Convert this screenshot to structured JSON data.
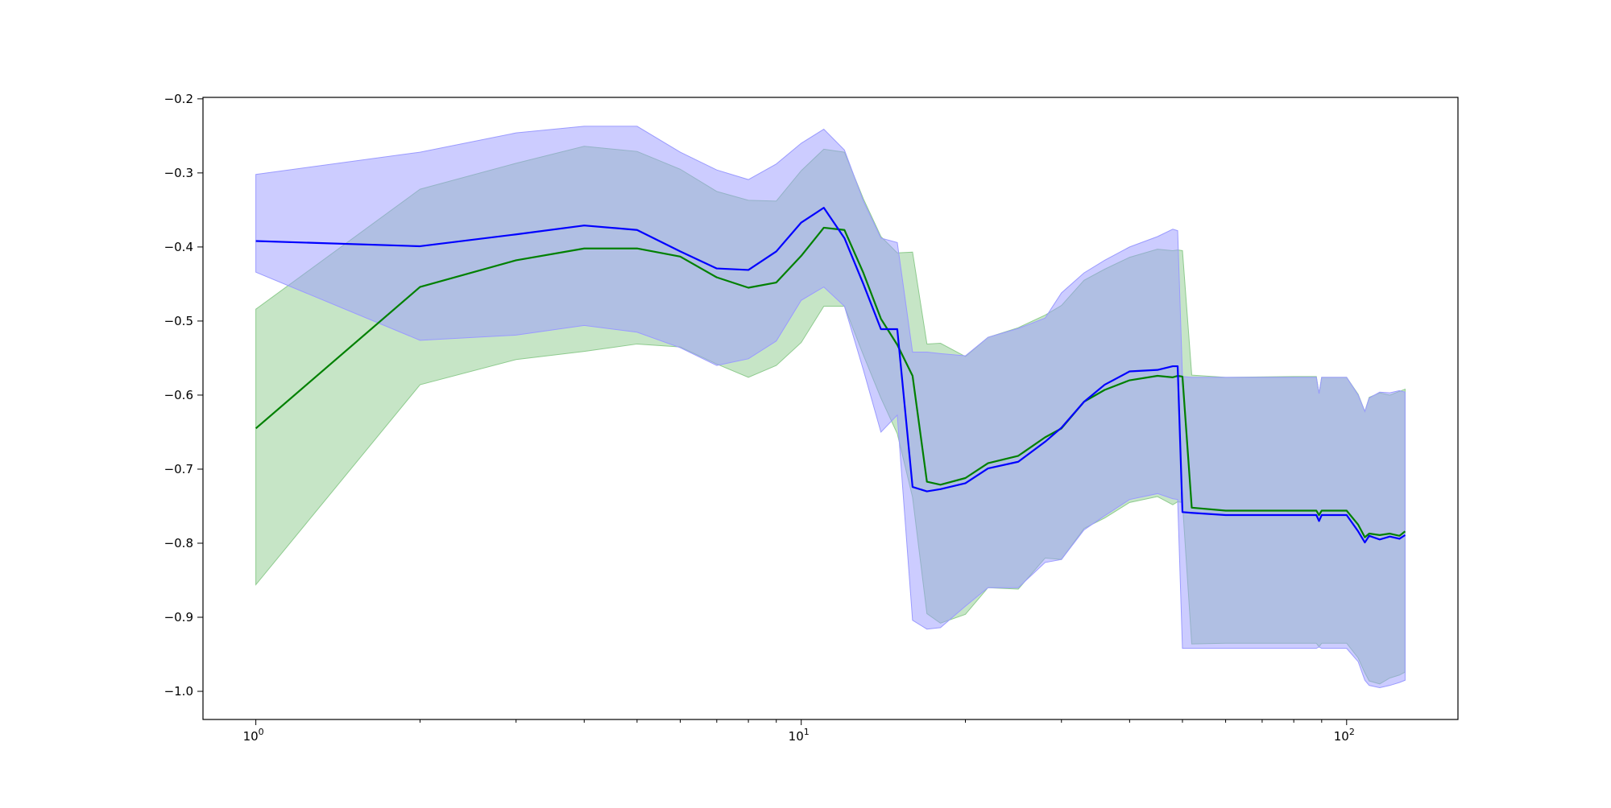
{
  "chart_data": {
    "type": "line",
    "xscale": "log",
    "xlim": [
      0.8,
      160
    ],
    "ylim": [
      -1.038,
      -0.198
    ],
    "grid": false,
    "x_ticks": [
      {
        "value": 1,
        "base": "10",
        "exp": "0"
      },
      {
        "value": 10,
        "base": "10",
        "exp": "1"
      },
      {
        "value": 100,
        "base": "10",
        "exp": "2"
      }
    ],
    "y_ticks": [
      -0.2,
      -0.3,
      -0.4,
      -0.5,
      -0.6,
      -0.7,
      -0.8,
      -0.9,
      -1.0
    ],
    "y_tick_labels": [
      "−0.2",
      "−0.3",
      "−0.4",
      "−0.5",
      "−0.6",
      "−0.7",
      "−0.8",
      "−0.9",
      "−1.0"
    ],
    "series": [
      {
        "color": "#008000",
        "band_color": "#8ecb8e",
        "x": [
          1,
          2,
          3,
          4,
          5,
          6,
          7,
          8,
          9,
          10,
          11,
          12,
          13,
          14,
          15,
          16,
          17,
          18,
          20,
          22,
          25,
          28,
          30,
          33,
          36,
          40,
          45,
          48,
          49,
          50,
          52,
          60,
          80,
          88,
          89,
          90,
          100,
          105,
          108,
          110,
          115,
          120,
          125,
          128
        ],
        "mean": [
          -0.645,
          -0.454,
          -0.418,
          -0.402,
          -0.402,
          -0.413,
          -0.441,
          -0.455,
          -0.448,
          -0.412,
          -0.374,
          -0.377,
          -0.435,
          -0.497,
          -0.532,
          -0.574,
          -0.717,
          -0.721,
          -0.712,
          -0.692,
          -0.682,
          -0.657,
          -0.645,
          -0.609,
          -0.593,
          -0.58,
          -0.574,
          -0.576,
          -0.574,
          -0.575,
          -0.752,
          -0.756,
          -0.756,
          -0.756,
          -0.762,
          -0.756,
          -0.756,
          -0.775,
          -0.792,
          -0.787,
          -0.789,
          -0.787,
          -0.79,
          -0.784
        ],
        "upper": [
          -0.484,
          -0.322,
          -0.287,
          -0.264,
          -0.271,
          -0.295,
          -0.325,
          -0.337,
          -0.338,
          -0.297,
          -0.268,
          -0.272,
          -0.335,
          -0.386,
          -0.408,
          -0.407,
          -0.531,
          -0.53,
          -0.548,
          -0.522,
          -0.509,
          -0.492,
          -0.479,
          -0.445,
          -0.43,
          -0.414,
          -0.403,
          -0.405,
          -0.404,
          -0.405,
          -0.573,
          -0.576,
          -0.575,
          -0.575,
          -0.598,
          -0.576,
          -0.576,
          -0.599,
          -0.622,
          -0.603,
          -0.597,
          -0.6,
          -0.595,
          -0.592
        ],
        "lower": [
          -0.856,
          -0.586,
          -0.552,
          -0.541,
          -0.531,
          -0.535,
          -0.558,
          -0.576,
          -0.56,
          -0.529,
          -0.48,
          -0.48,
          -0.546,
          -0.604,
          -0.652,
          -0.738,
          -0.895,
          -0.908,
          -0.896,
          -0.86,
          -0.862,
          -0.82,
          -0.822,
          -0.78,
          -0.766,
          -0.745,
          -0.737,
          -0.748,
          -0.744,
          -0.745,
          -0.936,
          -0.935,
          -0.935,
          -0.935,
          -0.94,
          -0.935,
          -0.935,
          -0.955,
          -0.975,
          -0.986,
          -0.99,
          -0.982,
          -0.978,
          -0.974
        ]
      },
      {
        "color": "#0000ff",
        "band_color": "#9a9aff",
        "x": [
          1,
          2,
          3,
          4,
          5,
          6,
          7,
          8,
          9,
          10,
          11,
          12,
          13,
          14,
          15,
          16,
          17,
          18,
          20,
          22,
          25,
          28,
          30,
          33,
          36,
          40,
          45,
          48,
          49,
          50,
          52,
          60,
          80,
          88,
          89,
          90,
          100,
          105,
          108,
          110,
          115,
          120,
          125,
          128
        ],
        "mean": [
          -0.392,
          -0.399,
          -0.383,
          -0.371,
          -0.377,
          -0.406,
          -0.429,
          -0.431,
          -0.406,
          -0.367,
          -0.347,
          -0.388,
          -0.45,
          -0.511,
          -0.511,
          -0.724,
          -0.73,
          -0.727,
          -0.719,
          -0.699,
          -0.69,
          -0.663,
          -0.644,
          -0.609,
          -0.586,
          -0.568,
          -0.566,
          -0.561,
          -0.561,
          -0.758,
          -0.759,
          -0.762,
          -0.762,
          -0.762,
          -0.77,
          -0.762,
          -0.762,
          -0.784,
          -0.799,
          -0.79,
          -0.795,
          -0.791,
          -0.794,
          -0.789
        ],
        "upper": [
          -0.302,
          -0.272,
          -0.246,
          -0.237,
          -0.237,
          -0.272,
          -0.296,
          -0.309,
          -0.288,
          -0.26,
          -0.241,
          -0.269,
          -0.338,
          -0.388,
          -0.394,
          -0.542,
          -0.542,
          -0.544,
          -0.547,
          -0.522,
          -0.51,
          -0.496,
          -0.462,
          -0.435,
          -0.418,
          -0.4,
          -0.386,
          -0.376,
          -0.378,
          -0.575,
          -0.576,
          -0.576,
          -0.576,
          -0.576,
          -0.598,
          -0.576,
          -0.576,
          -0.6,
          -0.622,
          -0.604,
          -0.596,
          -0.597,
          -0.594,
          -0.596
        ],
        "lower": [
          -0.434,
          -0.526,
          -0.519,
          -0.506,
          -0.515,
          -0.536,
          -0.56,
          -0.551,
          -0.527,
          -0.472,
          -0.454,
          -0.48,
          -0.566,
          -0.65,
          -0.627,
          -0.904,
          -0.916,
          -0.914,
          -0.885,
          -0.86,
          -0.86,
          -0.826,
          -0.822,
          -0.782,
          -0.763,
          -0.741,
          -0.733,
          -0.74,
          -0.741,
          -0.942,
          -0.942,
          -0.942,
          -0.942,
          -0.942,
          -0.94,
          -0.942,
          -0.942,
          -0.96,
          -0.985,
          -0.992,
          -0.995,
          -0.992,
          -0.988,
          -0.985
        ]
      }
    ]
  }
}
